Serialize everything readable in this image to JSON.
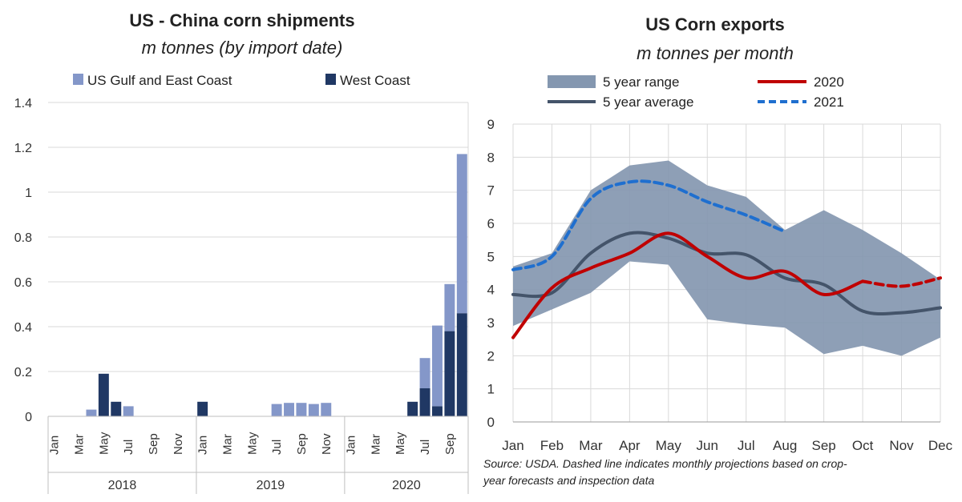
{
  "chart_data": [
    {
      "type": "bar",
      "stacked": true,
      "title": "US - China corn shipments",
      "subtitle": "m tonnes (by import date)",
      "yticks": [
        "0",
        "0.2",
        "0.4",
        "0.6",
        "0.8",
        "1",
        "1.2",
        "1.4"
      ],
      "ylim": [
        0,
        1.4
      ],
      "years": [
        "2018",
        "2019",
        "2020"
      ],
      "month_labels": [
        "Jan",
        "Mar",
        "May",
        "Jul",
        "Sep",
        "Nov"
      ],
      "month_labels_2020": [
        "Jan",
        "Mar",
        "May",
        "Jul",
        "Sep"
      ],
      "series": [
        {
          "name": "West Coast",
          "color": "#203864",
          "values": [
            0,
            0,
            0,
            0,
            0.19,
            0.065,
            0,
            0,
            0,
            0,
            0,
            0,
            0.065,
            0,
            0,
            0,
            0,
            0,
            0,
            0,
            0,
            0,
            0,
            0,
            0,
            0,
            0,
            0,
            0,
            0.065,
            0.125,
            0.045,
            0.38,
            0.46
          ]
        },
        {
          "name": "US Gulf and East Coast",
          "color": "#8497c9",
          "values": [
            0,
            0,
            0,
            0.03,
            0,
            0,
            0.045,
            0,
            0,
            0,
            0,
            0,
            0,
            0,
            0,
            0,
            0,
            0,
            0.055,
            0.06,
            0.06,
            0.055,
            0.06,
            0,
            0,
            0,
            0,
            0,
            0,
            0,
            0.135,
            0.36,
            0.21,
            0.71
          ]
        }
      ]
    },
    {
      "type": "line",
      "title": "US Corn exports",
      "subtitle": "m tonnes per month",
      "categories": [
        "Jan",
        "Feb",
        "Mar",
        "Apr",
        "May",
        "Jun",
        "Jul",
        "Aug",
        "Sep",
        "Oct",
        "Nov",
        "Dec"
      ],
      "yticks": [
        "0",
        "1",
        "2",
        "3",
        "4",
        "5",
        "6",
        "7",
        "8",
        "9"
      ],
      "ylim": [
        0,
        9
      ],
      "range": {
        "name": "5 year range",
        "color": "#8497b0",
        "upper": [
          4.7,
          5.1,
          7.0,
          7.75,
          7.9,
          7.15,
          6.8,
          5.8,
          6.4,
          5.8,
          5.1,
          4.3
        ],
        "lower": [
          2.9,
          3.4,
          3.9,
          4.85,
          4.75,
          3.1,
          2.95,
          2.85,
          2.05,
          2.3,
          2.0,
          2.55
        ]
      },
      "series": [
        {
          "name": "5 year average",
          "color": "#44546a",
          "style": "solid",
          "values": [
            3.85,
            3.9,
            5.1,
            5.7,
            5.55,
            5.1,
            5.05,
            4.35,
            4.15,
            3.35,
            3.3,
            3.45
          ]
        },
        {
          "name": "2020",
          "color": "#c00000",
          "style": "solid",
          "values": [
            2.55,
            4.05,
            4.65,
            5.1,
            5.7,
            5.0,
            4.35,
            4.55,
            3.85,
            4.25,
            null,
            null
          ]
        },
        {
          "name": "2020 projection",
          "color": "#c00000",
          "style": "dashed",
          "values": [
            null,
            null,
            null,
            null,
            null,
            null,
            null,
            null,
            null,
            4.25,
            4.1,
            4.35
          ]
        },
        {
          "name": "2021",
          "color": "#1f6fcf",
          "style": "dashed",
          "values": [
            4.6,
            5.0,
            6.75,
            7.25,
            7.15,
            6.65,
            6.25,
            5.75,
            null,
            null,
            null,
            null
          ]
        }
      ],
      "legend": [
        "5 year range",
        "5 year average",
        "2020",
        "2021"
      ],
      "source_line1": "Source: USDA. Dashed line indicates monthly projections based on crop-",
      "source_line2": "year forecasts and inspection data"
    }
  ]
}
